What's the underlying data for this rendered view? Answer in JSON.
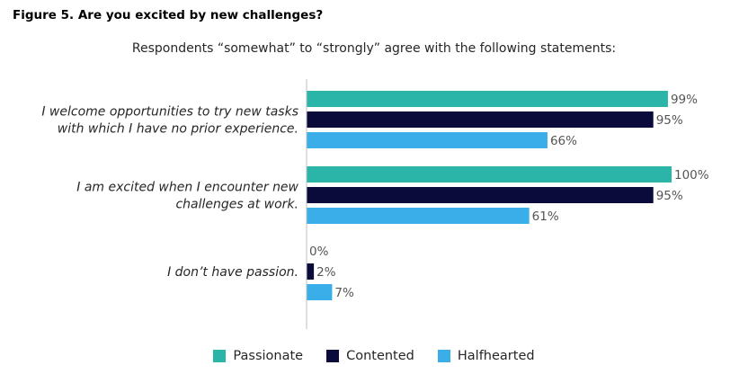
{
  "figure_title": "Figure 5. Are you excited by new challenges?",
  "chart_data": {
    "type": "bar",
    "orientation": "horizontal",
    "title": "Figure 5. Are you excited by new challenges?",
    "subtitle": "Respondents “somewhat” to “strongly” agree with the following statements:",
    "xlim": [
      0,
      100
    ],
    "value_suffix": "%",
    "grid": false,
    "legend_position": "bottom",
    "categories": [
      {
        "lines": [
          "I welcome opportunities to try new tasks",
          "with which I have no prior experience."
        ]
      },
      {
        "lines": [
          "I am excited when I encounter new",
          "challenges at work."
        ]
      },
      {
        "lines": [
          "I don’t have passion."
        ]
      }
    ],
    "series": [
      {
        "name": "Passionate",
        "color": "#2bb5a9",
        "values": [
          99,
          100,
          0
        ],
        "labels": [
          "99%",
          "100%",
          "0%"
        ]
      },
      {
        "name": "Contented",
        "color": "#0b0b3b",
        "values": [
          95,
          95,
          2
        ],
        "labels": [
          "95%",
          "95%",
          "2%"
        ]
      },
      {
        "name": "Halfhearted",
        "color": "#3aaee8",
        "values": [
          66,
          61,
          7
        ],
        "labels": [
          "66%",
          "61%",
          "7%"
        ]
      }
    ]
  }
}
